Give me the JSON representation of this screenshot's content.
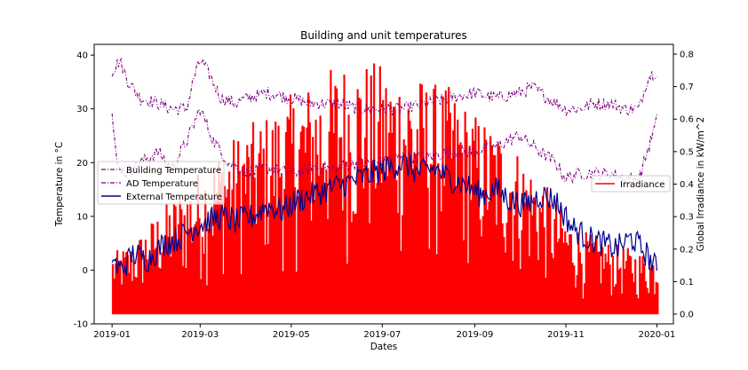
{
  "chart_data": {
    "type": "line",
    "title": "Building and unit temperatures",
    "xlabel": "Dates",
    "ylabel_left": "Temperature in °C",
    "ylabel_right": "Global Irradiance in kW/m^2",
    "x_range": [
      "2018-12-20",
      "2020-01-12"
    ],
    "ylim_left": [
      -10,
      42
    ],
    "ylim_right": [
      -0.03,
      0.83
    ],
    "x_ticks": [
      "2019-01",
      "2019-03",
      "2019-05",
      "2019-07",
      "2019-09",
      "2019-11",
      "2020-01"
    ],
    "y_ticks_left": [
      -10,
      0,
      10,
      20,
      30,
      40
    ],
    "y_ticks_right": [
      0.0,
      0.1,
      0.2,
      0.3,
      0.4,
      0.5,
      0.6,
      0.7,
      0.8
    ],
    "left_legend": {
      "placement": "center-left",
      "entries": [
        "Building Temperature",
        "AD Temperature",
        "External Temperature"
      ]
    },
    "right_legend": {
      "placement": "center-right",
      "entries": [
        "Irradiance"
      ]
    },
    "series": [
      {
        "name": "Building Temperature",
        "axis": "left",
        "color": "#800080",
        "style": "dashdot",
        "x": [
          "2019-01-01",
          "2019-01-06",
          "2019-01-12",
          "2019-01-20",
          "2019-02-01",
          "2019-02-10",
          "2019-02-20",
          "2019-02-25",
          "2019-03-01",
          "2019-03-06",
          "2019-03-15",
          "2019-03-25",
          "2019-04-01",
          "2019-04-15",
          "2019-05-01",
          "2019-05-15",
          "2019-06-01",
          "2019-06-15",
          "2019-07-01",
          "2019-07-15",
          "2019-08-01",
          "2019-08-15",
          "2019-09-01",
          "2019-09-15",
          "2019-10-01",
          "2019-10-10",
          "2019-10-20",
          "2019-11-01",
          "2019-11-10",
          "2019-11-20",
          "2019-12-01",
          "2019-12-10",
          "2019-12-20",
          "2019-12-26",
          "2020-01-01"
        ],
        "values": [
          37,
          39,
          35,
          32,
          31,
          30,
          30,
          36,
          39,
          37,
          32,
          31,
          32,
          33,
          32,
          31,
          31,
          30,
          30,
          30,
          31,
          32,
          33,
          32,
          33,
          34,
          32,
          30,
          30,
          31,
          31,
          30,
          30,
          36,
          37
        ]
      },
      {
        "name": "AD Temperature",
        "axis": "left",
        "color": "#800080",
        "style": "dashdot",
        "x": [
          "2019-01-01",
          "2019-01-04",
          "2019-01-10",
          "2019-01-20",
          "2019-02-01",
          "2019-02-10",
          "2019-02-20",
          "2019-03-01",
          "2019-03-10",
          "2019-03-20",
          "2019-04-01",
          "2019-04-15",
          "2019-05-01",
          "2019-05-15",
          "2019-06-01",
          "2019-06-15",
          "2019-07-01",
          "2019-07-15",
          "2019-08-01",
          "2019-08-15",
          "2019-09-01",
          "2019-09-15",
          "2019-10-01",
          "2019-10-15",
          "2019-10-25",
          "2019-11-01",
          "2019-11-10",
          "2019-11-20",
          "2019-12-01",
          "2019-12-10",
          "2019-12-20",
          "2020-01-01"
        ],
        "values": [
          29,
          20,
          18,
          20,
          22,
          19,
          24,
          30,
          24,
          20,
          18,
          19,
          18,
          19,
          19,
          20,
          20,
          21,
          21,
          22,
          22,
          23,
          25,
          22,
          20,
          17,
          18,
          18,
          18,
          17,
          17,
          28
        ]
      },
      {
        "name": "External Temperature",
        "axis": "left",
        "color": "#00008b",
        "style": "solid",
        "x": [
          "2019-01-01",
          "2019-01-05",
          "2019-01-10",
          "2019-01-15",
          "2019-01-25",
          "2019-02-05",
          "2019-02-15",
          "2019-02-25",
          "2019-03-05",
          "2019-03-15",
          "2019-03-25",
          "2019-04-05",
          "2019-04-15",
          "2019-04-25",
          "2019-05-05",
          "2019-05-15",
          "2019-05-25",
          "2019-06-05",
          "2019-06-15",
          "2019-06-25",
          "2019-07-05",
          "2019-07-15",
          "2019-07-25",
          "2019-08-05",
          "2019-08-15",
          "2019-08-25",
          "2019-09-05",
          "2019-09-15",
          "2019-09-25",
          "2019-10-05",
          "2019-10-15",
          "2019-10-25",
          "2019-11-05",
          "2019-11-15",
          "2019-11-25",
          "2019-12-05",
          "2019-12-15",
          "2019-12-25",
          "2020-01-01"
        ],
        "values": [
          3,
          0,
          1,
          3,
          2,
          5,
          6,
          8,
          9,
          10,
          9,
          10,
          12,
          11,
          13,
          14,
          15,
          16,
          17,
          18,
          19,
          20,
          18,
          19,
          17,
          16,
          14,
          15,
          13,
          12,
          14,
          13,
          8,
          6,
          5,
          4,
          6,
          3,
          0
        ]
      },
      {
        "name": "Irradiance",
        "axis": "right",
        "color": "#ff0000",
        "style": "bars",
        "x": [
          "2019-01-01",
          "2019-01-15",
          "2019-02-01",
          "2019-02-15",
          "2019-03-01",
          "2019-03-15",
          "2019-04-01",
          "2019-04-15",
          "2019-05-01",
          "2019-05-15",
          "2019-06-01",
          "2019-06-15",
          "2019-07-01",
          "2019-07-15",
          "2019-08-01",
          "2019-08-15",
          "2019-09-01",
          "2019-09-15",
          "2019-10-01",
          "2019-10-15",
          "2019-11-01",
          "2019-11-15",
          "2019-12-01",
          "2019-12-15",
          "2020-01-01"
        ],
        "values": [
          0.19,
          0.22,
          0.32,
          0.38,
          0.45,
          0.52,
          0.58,
          0.62,
          0.68,
          0.72,
          0.78,
          0.79,
          0.77,
          0.76,
          0.72,
          0.7,
          0.62,
          0.58,
          0.5,
          0.42,
          0.3,
          0.25,
          0.22,
          0.2,
          0.18
        ]
      }
    ]
  }
}
